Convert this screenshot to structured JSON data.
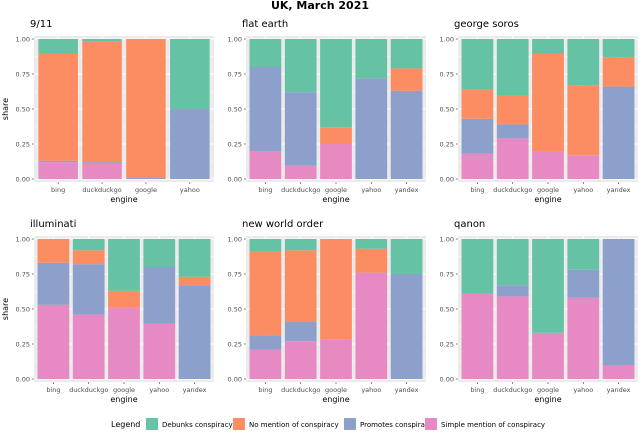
{
  "figure": {
    "title": "UK, March 2021",
    "legend_title": "Legend",
    "legend_items": [
      {
        "label": "Debunks conspiracy",
        "color": "#66C2A5"
      },
      {
        "label": "No mention of conspiracy",
        "color": "#FC8D62"
      },
      {
        "label": "Promotes conspiracy",
        "color": "#8DA0CB"
      },
      {
        "label": "Simple mention of conspiracy",
        "color": "#E78AC3"
      }
    ]
  },
  "chart_data": [
    {
      "type": "bar",
      "stacked": true,
      "title": "9/11",
      "xlabel": "engine",
      "ylabel": "share",
      "ylim": [
        0,
        1
      ],
      "yticks": [
        "0.00",
        "0.25",
        "0.50",
        "0.75",
        "1.00"
      ],
      "categories": [
        "bing",
        "duckduckgo",
        "google",
        "yahoo"
      ],
      "series": [
        {
          "key": "simple",
          "values": [
            0.12,
            0.11,
            0.0,
            0.0
          ]
        },
        {
          "key": "promotes",
          "values": [
            0.01,
            0.01,
            0.01,
            0.5
          ]
        },
        {
          "key": "nomention",
          "values": [
            0.77,
            0.86,
            0.99,
            0.0
          ]
        },
        {
          "key": "debunks",
          "values": [
            0.1,
            0.02,
            0.0,
            0.5
          ]
        }
      ]
    },
    {
      "type": "bar",
      "stacked": true,
      "title": "flat earth",
      "xlabel": "engine",
      "ylabel": "",
      "ylim": [
        0,
        1
      ],
      "yticks": [
        "0.00",
        "0.25",
        "0.50",
        "0.75",
        "1.00"
      ],
      "categories": [
        "bing",
        "duckduckgo",
        "google",
        "yahoo",
        "yandex"
      ],
      "series": [
        {
          "key": "simple",
          "values": [
            0.2,
            0.1,
            0.25,
            0.0,
            0.0
          ]
        },
        {
          "key": "promotes",
          "values": [
            0.6,
            0.52,
            0.0,
            0.72,
            0.63
          ]
        },
        {
          "key": "nomention",
          "values": [
            0.0,
            0.0,
            0.12,
            0.0,
            0.16
          ]
        },
        {
          "key": "debunks",
          "values": [
            0.2,
            0.38,
            0.63,
            0.28,
            0.21
          ]
        }
      ]
    },
    {
      "type": "bar",
      "stacked": true,
      "title": "george soros",
      "xlabel": "engine",
      "ylabel": "",
      "ylim": [
        0,
        1
      ],
      "yticks": [
        "0.00",
        "0.25",
        "0.50",
        "0.75",
        "1.00"
      ],
      "categories": [
        "bing",
        "duckduckgo",
        "google",
        "yahoo",
        "yandex"
      ],
      "series": [
        {
          "key": "simple",
          "values": [
            0.18,
            0.29,
            0.2,
            0.17,
            0.0
          ]
        },
        {
          "key": "promotes",
          "values": [
            0.25,
            0.1,
            0.0,
            0.0,
            0.66
          ]
        },
        {
          "key": "nomention",
          "values": [
            0.21,
            0.21,
            0.7,
            0.5,
            0.21
          ]
        },
        {
          "key": "debunks",
          "values": [
            0.36,
            0.4,
            0.1,
            0.33,
            0.13
          ]
        }
      ]
    },
    {
      "type": "bar",
      "stacked": true,
      "title": "illuminati",
      "xlabel": "engine",
      "ylabel": "share",
      "ylim": [
        0,
        1
      ],
      "yticks": [
        "0.00",
        "0.25",
        "0.50",
        "0.75",
        "1.00"
      ],
      "categories": [
        "bing",
        "duckduckgo",
        "google",
        "yahoo",
        "yandex"
      ],
      "series": [
        {
          "key": "simple",
          "values": [
            0.53,
            0.46,
            0.51,
            0.4,
            0.0
          ]
        },
        {
          "key": "promotes",
          "values": [
            0.3,
            0.36,
            0.0,
            0.4,
            0.67
          ]
        },
        {
          "key": "nomention",
          "values": [
            0.17,
            0.1,
            0.12,
            0.0,
            0.06
          ]
        },
        {
          "key": "debunks",
          "values": [
            0.0,
            0.08,
            0.37,
            0.2,
            0.27
          ]
        }
      ]
    },
    {
      "type": "bar",
      "stacked": true,
      "title": "new world order",
      "xlabel": "engine",
      "ylabel": "",
      "ylim": [
        0,
        1
      ],
      "yticks": [
        "0.00",
        "0.25",
        "0.50",
        "0.75",
        "1.00"
      ],
      "categories": [
        "bing",
        "duckduckgo",
        "google",
        "yahoo",
        "yandex"
      ],
      "series": [
        {
          "key": "simple",
          "values": [
            0.21,
            0.27,
            0.28,
            0.76,
            0.0
          ]
        },
        {
          "key": "promotes",
          "values": [
            0.1,
            0.14,
            0.0,
            0.0,
            0.75
          ]
        },
        {
          "key": "nomention",
          "values": [
            0.6,
            0.51,
            0.72,
            0.17,
            0.0
          ]
        },
        {
          "key": "debunks",
          "values": [
            0.09,
            0.08,
            0.0,
            0.07,
            0.25
          ]
        }
      ]
    },
    {
      "type": "bar",
      "stacked": true,
      "title": "qanon",
      "xlabel": "engine",
      "ylabel": "",
      "ylim": [
        0,
        1
      ],
      "yticks": [
        "0.00",
        "0.25",
        "0.50",
        "0.75",
        "1.00"
      ],
      "categories": [
        "bing",
        "duckduckgo",
        "google",
        "yahoo",
        "yandex"
      ],
      "series": [
        {
          "key": "simple",
          "values": [
            0.61,
            0.59,
            0.33,
            0.58,
            0.1
          ]
        },
        {
          "key": "promotes",
          "values": [
            0.0,
            0.08,
            0.0,
            0.2,
            0.9
          ]
        },
        {
          "key": "nomention",
          "values": [
            0.0,
            0.0,
            0.0,
            0.0,
            0.0
          ]
        },
        {
          "key": "debunks",
          "values": [
            0.39,
            0.33,
            0.67,
            0.22,
            0.0
          ]
        }
      ]
    }
  ],
  "series_colors": {
    "simple": "#E78AC3",
    "promotes": "#8DA0CB",
    "nomention": "#FC8D62",
    "debunks": "#66C2A5"
  }
}
